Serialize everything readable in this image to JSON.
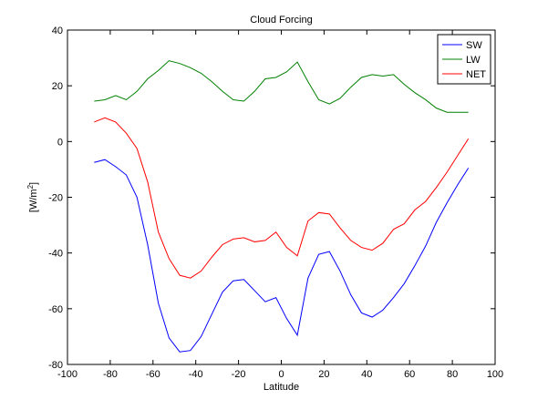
{
  "chart_data": {
    "type": "line",
    "title": "Cloud Forcing",
    "xlabel": "Latitude",
    "ylabel": "[W/m",
    "ylabel_sup": "2",
    "ylabel_end": "]",
    "xlim": [
      -100,
      100
    ],
    "ylim": [
      -80,
      40
    ],
    "xticks": [
      -100,
      -80,
      -60,
      -40,
      -20,
      0,
      20,
      40,
      60,
      80,
      100
    ],
    "yticks": [
      -80,
      -60,
      -40,
      -20,
      0,
      20,
      40
    ],
    "grid": false,
    "legend_position": "top-right",
    "x": [
      -87.5,
      -82.5,
      -77.5,
      -72.5,
      -67.5,
      -62.5,
      -57.5,
      -52.5,
      -47.5,
      -42.5,
      -37.5,
      -32.5,
      -27.5,
      -22.5,
      -17.5,
      -12.5,
      -7.5,
      -2.5,
      2.5,
      7.5,
      12.5,
      17.5,
      22.5,
      27.5,
      32.5,
      37.5,
      42.5,
      47.5,
      52.5,
      57.5,
      62.5,
      67.5,
      72.5,
      77.5,
      82.5,
      87.5
    ],
    "series": [
      {
        "name": "SW",
        "color": "#0000ff",
        "values": [
          -7.5,
          -6.5,
          -9,
          -12,
          -20,
          -37,
          -58,
          -70.5,
          -75.5,
          -75,
          -70,
          -62,
          -54,
          -50,
          -49.5,
          -53.5,
          -57.5,
          -56,
          -63.5,
          -69.5,
          -49,
          -40.5,
          -39.5,
          -46.5,
          -55,
          -61.5,
          -63,
          -60.5,
          -56,
          -51,
          -44.5,
          -37.5,
          -29,
          -22,
          -15.5,
          -9.5
        ]
      },
      {
        "name": "LW",
        "color": "#008000",
        "values": [
          14.5,
          15,
          16.5,
          15,
          18,
          22.5,
          25.5,
          29,
          28,
          26.5,
          24.5,
          21.5,
          18,
          15,
          14.5,
          18,
          22.5,
          23,
          25,
          28.5,
          21.5,
          15,
          13.5,
          15.5,
          19.5,
          23,
          24,
          23.5,
          24,
          20.5,
          17.5,
          15,
          12,
          10.5,
          10.5,
          10.5
        ]
      },
      {
        "name": "NET",
        "color": "#ff0000",
        "values": [
          7,
          8.5,
          7,
          3,
          -2.5,
          -14.5,
          -32.5,
          -42,
          -48,
          -49,
          -46.5,
          -41.5,
          -37,
          -35,
          -34.5,
          -36,
          -35.5,
          -32.5,
          -38,
          -41,
          -28.5,
          -25.5,
          -26,
          -31,
          -35.5,
          -38,
          -39,
          -36.5,
          -31.5,
          -29.5,
          -24.5,
          -21.5,
          -16.5,
          -11,
          -5,
          1
        ]
      }
    ]
  }
}
